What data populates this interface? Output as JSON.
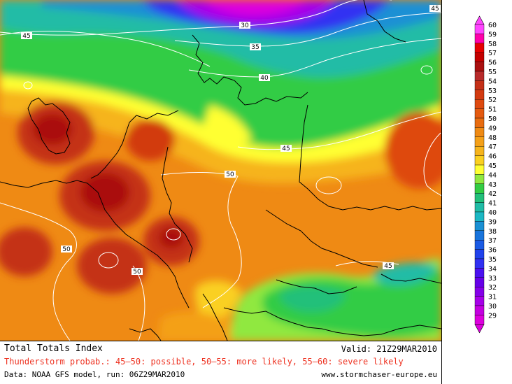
{
  "map": {
    "contour_labels": [
      {
        "text": "30"
      },
      {
        "text": "35"
      },
      {
        "text": "40"
      },
      {
        "text": "45"
      },
      {
        "text": "45"
      },
      {
        "text": "45"
      },
      {
        "text": "45"
      },
      {
        "text": "50"
      },
      {
        "text": "50"
      },
      {
        "text": "50"
      }
    ]
  },
  "legend": {
    "levels": [
      60,
      59,
      58,
      57,
      56,
      55,
      54,
      53,
      52,
      51,
      50,
      49,
      48,
      47,
      46,
      45,
      44,
      43,
      42,
      41,
      40,
      39,
      38,
      37,
      36,
      35,
      34,
      33,
      32,
      31,
      30,
      29
    ],
    "colors": [
      "#ff44ff",
      "#ff00aa",
      "#e60000",
      "#c40000",
      "#aa1010",
      "#b82a2a",
      "#c43018",
      "#d23a10",
      "#de4a10",
      "#e45a10",
      "#e86c10",
      "#ef8a14",
      "#f4a018",
      "#f6b41c",
      "#fad020",
      "#ffff33",
      "#90e840",
      "#33cc44",
      "#22c07a",
      "#20bca6",
      "#1cb8c4",
      "#1a90d4",
      "#1874dc",
      "#1a5ae4",
      "#2042ec",
      "#3030f2",
      "#4a10f0",
      "#6600e8",
      "#8400e8",
      "#a600e8",
      "#c400e0",
      "#dd00dd"
    ]
  },
  "footer": {
    "title": "Total Totals Index",
    "valid": "Valid: 21Z29MAR2010",
    "subtitle": "Thunderstorm probab.: 45—50: possible, 50—55: more likely, 55—60: severe likely",
    "source": "Data: NOAA GFS model, run: 06Z29MAR2010",
    "website": "www.stormchaser-europe.eu"
  }
}
